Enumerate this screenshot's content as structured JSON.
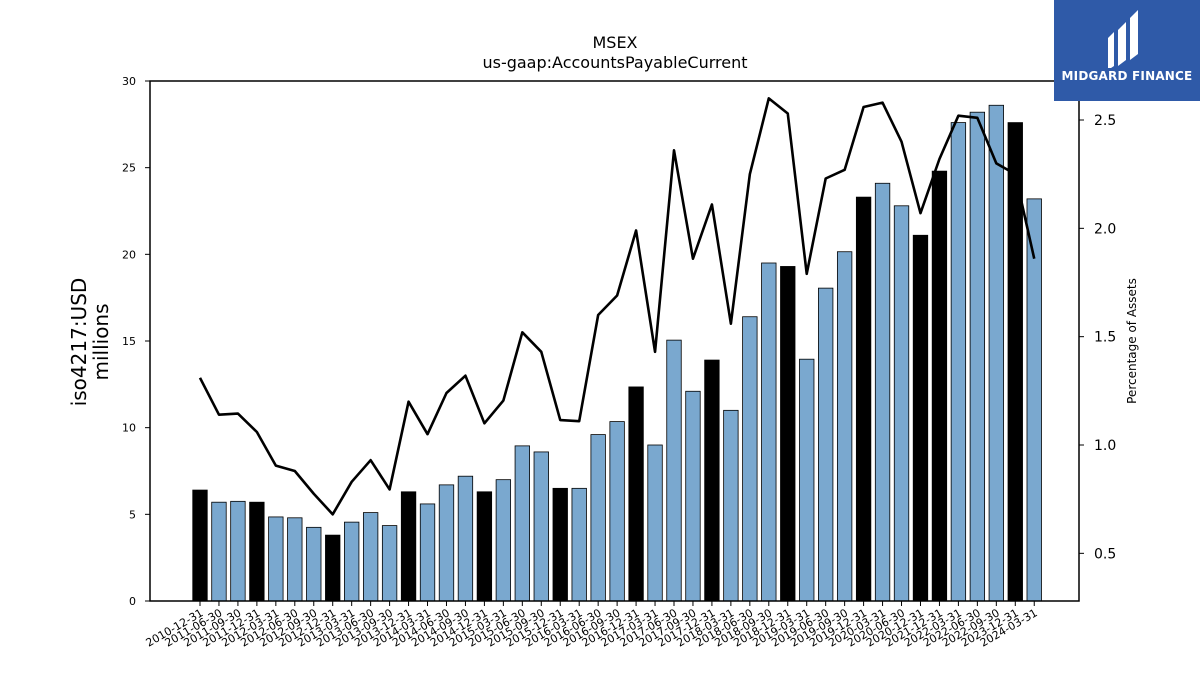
{
  "chart_data": {
    "type": "bar",
    "title": "MSEX",
    "subtitle": "us-gaap:AccountsPayableCurrent",
    "ylabel_line1": "iso4217:USD",
    "ylabel_line2": "millions",
    "y2label": "Percentage of Assets",
    "ylim": [
      0,
      30
    ],
    "y2lim": [
      0.28,
      2.68
    ],
    "yticks": [
      "0",
      "5",
      "10",
      "15",
      "20",
      "25",
      "30"
    ],
    "y2ticks": [
      "0.5",
      "1.0",
      "1.5",
      "2.0",
      "2.5"
    ],
    "categories": [
      "2010-12-31",
      "2011-06-30",
      "2011-09-30",
      "2011-12-31",
      "2012-03-31",
      "2012-06-30",
      "2012-09-30",
      "2012-12-31",
      "2013-03-31",
      "2013-06-30",
      "2013-09-30",
      "2013-12-31",
      "2014-03-31",
      "2014-06-30",
      "2014-09-30",
      "2014-12-31",
      "2015-03-31",
      "2015-06-30",
      "2015-09-30",
      "2015-12-31",
      "2016-03-31",
      "2016-06-30",
      "2016-09-30",
      "2016-12-31",
      "2017-03-31",
      "2017-06-30",
      "2017-09-30",
      "2017-12-31",
      "2018-03-31",
      "2018-06-30",
      "2018-09-30",
      "2018-12-31",
      "2019-03-31",
      "2019-06-30",
      "2019-09-30",
      "2019-12-31",
      "2020-03-31",
      "2020-06-30",
      "2020-12-31",
      "2021-12-31",
      "2022-03-31",
      "2022-06-30",
      "2022-09-30",
      "2023-12-31",
      "2024-03-31"
    ],
    "series": [
      {
        "values": [
          6.4,
          5.7,
          5.75,
          5.7,
          4.85,
          4.8,
          4.25,
          3.8,
          4.55,
          5.1,
          4.35,
          6.3,
          5.6,
          6.7,
          7.2,
          6.3,
          7.0,
          8.95,
          8.6,
          6.5,
          6.5,
          9.6,
          10.35,
          12.35,
          9.0,
          15.05,
          12.1,
          13.9,
          11.0,
          16.4,
          19.5,
          19.3,
          13.95,
          18.05,
          20.15,
          23.3,
          24.1,
          22.8,
          21.1,
          24.8,
          27.6,
          28.2,
          28.6,
          27.6,
          23.2
        ],
        "annual": [
          true,
          false,
          false,
          true,
          false,
          false,
          false,
          true,
          false,
          false,
          false,
          true,
          false,
          false,
          false,
          true,
          false,
          false,
          false,
          true,
          false,
          false,
          false,
          true,
          false,
          false,
          false,
          true,
          false,
          false,
          false,
          true,
          false,
          false,
          false,
          true,
          false,
          false,
          true,
          true,
          false,
          false,
          false,
          true,
          false
        ]
      },
      {
        "values": [
          1.31,
          1.14,
          1.145,
          1.06,
          0.905,
          0.88,
          0.775,
          0.68,
          0.83,
          0.93,
          0.795,
          1.2,
          1.05,
          1.24,
          1.32,
          1.1,
          1.205,
          1.52,
          1.43,
          1.115,
          1.11,
          1.6,
          1.69,
          1.99,
          1.43,
          2.36,
          1.86,
          2.11,
          1.56,
          2.25,
          2.6,
          2.53,
          1.79,
          2.23,
          2.27,
          2.56,
          2.58,
          2.4,
          2.07,
          2.32,
          2.52,
          2.51,
          2.3,
          2.25,
          1.86
        ]
      }
    ],
    "colors": {
      "annual_bar": "#000000",
      "quarter_bar": "#7aa8cf",
      "line": "#000000"
    }
  },
  "logo": {
    "text": "MIDGARD FINANCE"
  }
}
